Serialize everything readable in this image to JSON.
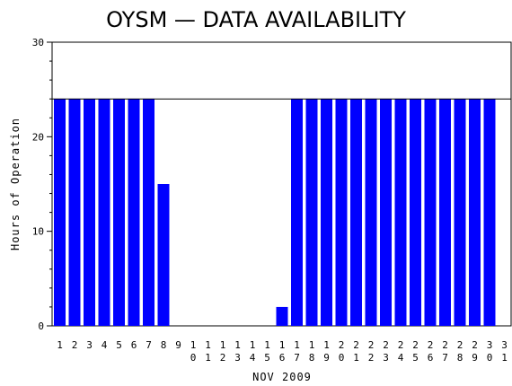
{
  "chart_data": {
    "type": "bar",
    "title": "OYSM — DATA AVAILABILITY",
    "xlabel": "NOV 2009",
    "ylabel": "Hours of Operation",
    "ylim": [
      0,
      30
    ],
    "yticks": [
      0,
      10,
      20,
      30
    ],
    "reference_line": 24,
    "grid": false,
    "bar_color": "#0000ff",
    "categories": [
      "1",
      "2",
      "3",
      "4",
      "5",
      "6",
      "7",
      "8",
      "9",
      "10",
      "11",
      "12",
      "13",
      "14",
      "15",
      "16",
      "17",
      "18",
      "19",
      "20",
      "21",
      "22",
      "23",
      "24",
      "25",
      "26",
      "27",
      "28",
      "29",
      "30",
      "31"
    ],
    "values": [
      24,
      24,
      24,
      24,
      24,
      24,
      24,
      15,
      0,
      0,
      0,
      0,
      0,
      0,
      0,
      2,
      24,
      24,
      24,
      24,
      24,
      24,
      24,
      24,
      24,
      24,
      24,
      24,
      24,
      24,
      0
    ]
  }
}
